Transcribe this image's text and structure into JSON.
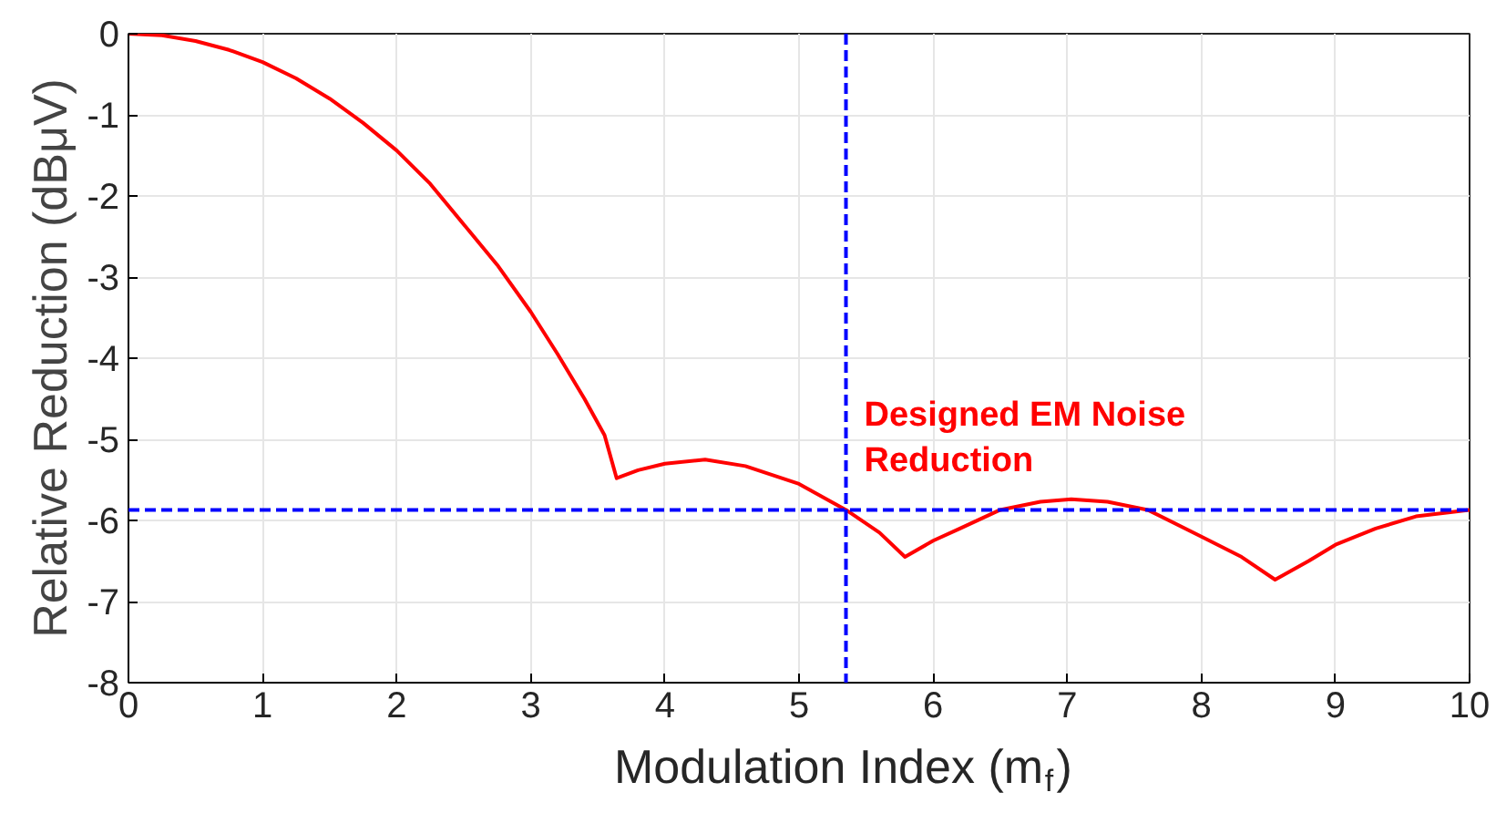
{
  "chart_data": {
    "type": "line",
    "xlabel": "Modulation Index (m$_{f}$)",
    "ylabel": "Relative Reduction (dBμV)",
    "x": [
      0,
      0.25,
      0.5,
      0.75,
      1,
      1.25,
      1.5,
      1.75,
      2,
      2.25,
      2.5,
      2.75,
      3,
      3.2,
      3.4,
      3.55,
      3.64,
      3.8,
      4.0,
      4.3,
      4.6,
      5.0,
      5.35,
      5.6,
      5.79,
      6.0,
      6.2,
      6.5,
      6.8,
      7.03,
      7.3,
      7.6,
      8.0,
      8.3,
      8.55,
      8.8,
      9.0,
      9.3,
      9.6,
      10
    ],
    "series": [
      {
        "color": "#ff0000",
        "values": [
          0,
          -0.02,
          -0.09,
          -0.2,
          -0.35,
          -0.55,
          -0.8,
          -1.1,
          -1.44,
          -1.85,
          -2.35,
          -2.85,
          -3.43,
          -3.95,
          -4.5,
          -4.95,
          -5.48,
          -5.38,
          -5.3,
          -5.25,
          -5.33,
          -5.55,
          -5.87,
          -6.15,
          -6.45,
          -6.25,
          -6.1,
          -5.87,
          -5.77,
          -5.74,
          -5.77,
          -5.87,
          -6.2,
          -6.45,
          -6.73,
          -6.5,
          -6.3,
          -6.1,
          -5.95,
          -5.87
        ]
      }
    ],
    "xlim": [
      0,
      10
    ],
    "ylim": [
      -8,
      0
    ],
    "xticks": [
      0,
      1,
      2,
      3,
      4,
      5,
      6,
      7,
      8,
      9,
      10
    ],
    "yticks": [
      -8,
      -7,
      -6,
      -5,
      -4,
      -3,
      -2,
      -1,
      0
    ],
    "grid": true,
    "line_style": "solid",
    "ref_lines": [
      {
        "axis": "x",
        "value": 5.35,
        "color": "#0000ff",
        "line_style": "dashed"
      },
      {
        "axis": "y",
        "value": -5.87,
        "color": "#0000ff",
        "line_style": "dashed"
      }
    ],
    "annotations": [
      {
        "text": "Designed EM Noise\nReduction",
        "x": 5.35,
        "y": -5.87
      }
    ]
  }
}
